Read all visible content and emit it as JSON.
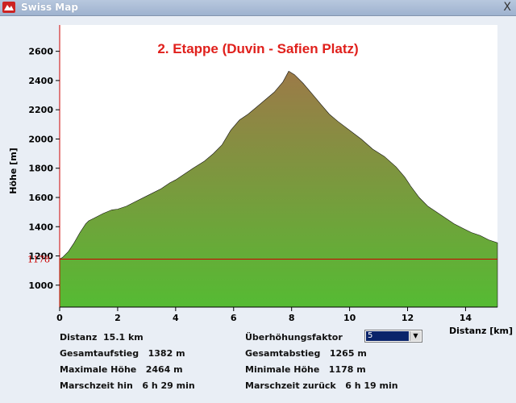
{
  "window": {
    "title": "Swiss Map",
    "close_label": "X"
  },
  "chart_data": {
    "type": "area",
    "title": "2. Etappe (Duvin - Safien Platz)",
    "xlabel": "Distanz [km]",
    "ylabel": "Höhe [m]",
    "xlim": [
      0,
      15.1
    ],
    "ylim": [
      850,
      2780
    ],
    "x_ticks": [
      0,
      2,
      4,
      6,
      8,
      10,
      12,
      14
    ],
    "y_ticks": [
      1000,
      1200,
      1400,
      1600,
      1800,
      2000,
      2200,
      2400,
      2600
    ],
    "reference_line": {
      "value": 1178,
      "label": "1178",
      "color": "#cc0000"
    },
    "fill_top_color": "#9c7a48",
    "fill_bottom_color": "#55bb33",
    "series": [
      {
        "x": [
          0,
          0.1,
          0.3,
          0.5,
          0.7,
          0.9,
          1.0,
          1.2,
          1.5,
          1.8,
          2.0,
          2.3,
          2.6,
          3.0,
          3.5,
          3.8,
          4.0,
          4.3,
          4.6,
          5.0,
          5.3,
          5.6,
          5.9,
          6.2,
          6.5,
          6.8,
          7.1,
          7.4,
          7.7,
          7.9,
          8.1,
          8.4,
          8.7,
          9.0,
          9.3,
          9.6,
          10.0,
          10.4,
          10.8,
          11.2,
          11.6,
          11.9,
          12.1,
          12.4,
          12.7,
          13.0,
          13.3,
          13.6,
          13.9,
          14.2,
          14.5,
          14.8,
          15.1
        ],
        "y": [
          1178,
          1190,
          1230,
          1290,
          1360,
          1420,
          1440,
          1460,
          1490,
          1515,
          1520,
          1540,
          1570,
          1610,
          1660,
          1700,
          1720,
          1760,
          1800,
          1850,
          1900,
          1960,
          2060,
          2130,
          2170,
          2220,
          2270,
          2320,
          2390,
          2464,
          2440,
          2380,
          2310,
          2240,
          2170,
          2120,
          2060,
          2000,
          1930,
          1880,
          1810,
          1740,
          1680,
          1600,
          1540,
          1500,
          1460,
          1420,
          1390,
          1360,
          1340,
          1310,
          1290
        ]
      }
    ]
  },
  "stats": {
    "distance": "Distanz  15.1 km",
    "ascent": "Gesamtaufstieg   1382 m",
    "max_height": "Maximale Höhe   2464 m",
    "time_forward": "Marschzeit hin   6 h 29 min",
    "exaggeration_label": "Überhöhungsfaktor",
    "exaggeration_value": "5",
    "descent": "Gesamtabstieg   1265 m",
    "min_height": "Minimale Höhe   1178 m",
    "time_back": "Marschzeit zurück   6 h 19 min"
  }
}
